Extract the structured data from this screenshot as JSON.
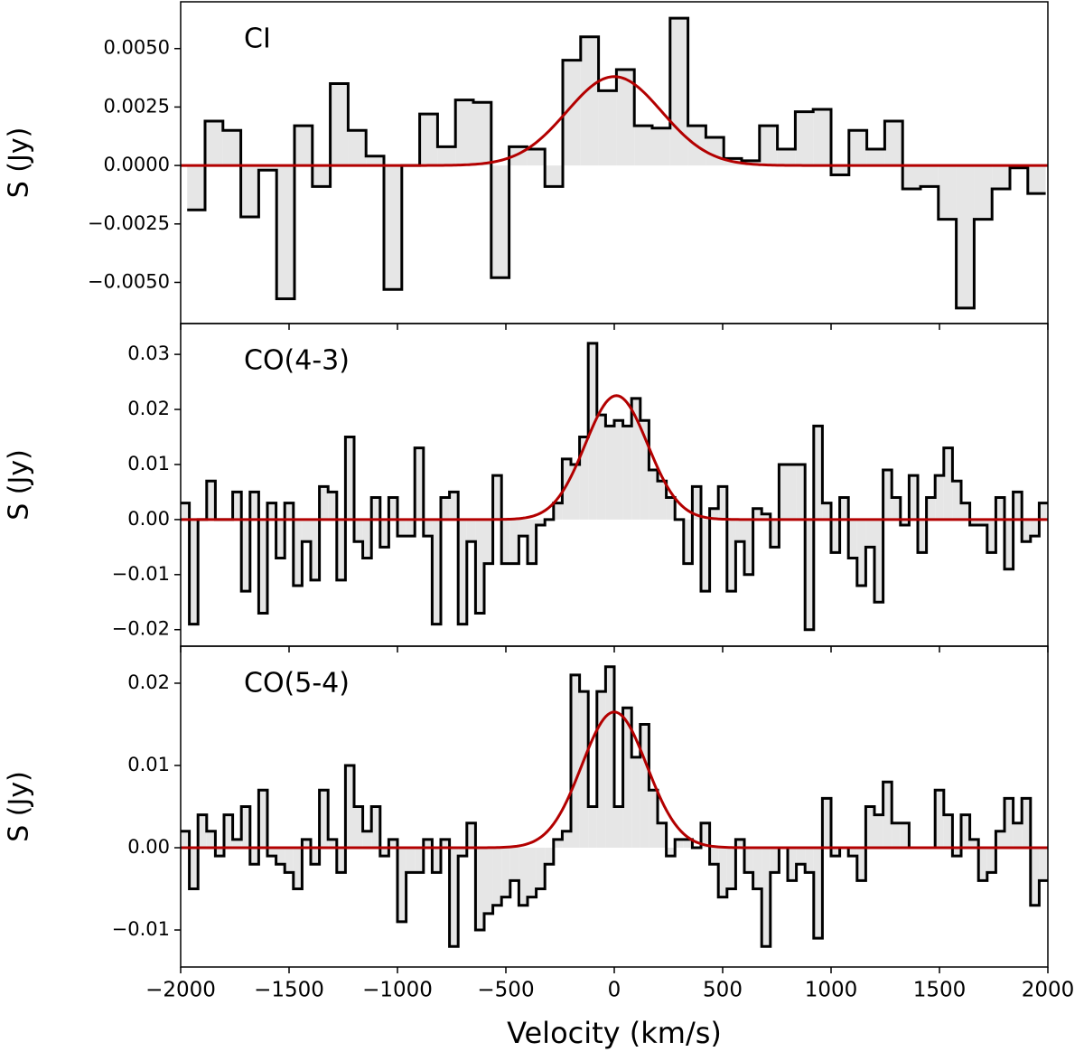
{
  "chart_data": [
    {
      "type": "histogram",
      "title": "CI",
      "ylabel": "S (Jy)",
      "bins": [
        -1970,
        -1887.5,
        -1805,
        -1722.5,
        -1640,
        -1557.5,
        -1475,
        -1392.5,
        -1310,
        -1227.5,
        -1145,
        -1062.5,
        -980,
        -897.5,
        -815,
        -732.5,
        -650,
        -567.5,
        -485,
        -402.5,
        -320,
        -237.5,
        -155,
        -72.5,
        10,
        92.5,
        175,
        257.5,
        340,
        422.5,
        505,
        587.5,
        670,
        752.5,
        835,
        917.5,
        1000,
        1082.5,
        1165,
        1247.5,
        1330,
        1412.5,
        1495,
        1577.5,
        1660,
        1742.5,
        1825,
        1907.5,
        1990
      ],
      "values": [
        -0.0019,
        0.0019,
        0.0015,
        -0.0022,
        -0.0002,
        -0.0057,
        0.0017,
        -0.0009,
        0.0035,
        0.0015,
        0.0004,
        -0.0053,
        0.0,
        0.0022,
        0.0008,
        0.0028,
        0.0027,
        -0.0048,
        0.0008,
        0.0007,
        -0.0009,
        0.0045,
        0.0055,
        0.0032,
        0.0041,
        0.0017,
        0.0016,
        0.0063,
        0.0017,
        0.0012,
        0.0003,
        0.0002,
        0.0017,
        0.0007,
        0.0023,
        0.0024,
        -0.0004,
        0.0015,
        0.0007,
        0.0019,
        -0.001,
        -0.0009,
        -0.0023,
        -0.0061,
        -0.0023,
        -0.001,
        -0.0001,
        -0.0012
      ],
      "fit": {
        "amplitude": 0.0038,
        "center": 0,
        "sigma": 219,
        "color": "#b30000"
      },
      "fill_color": "#e6e6e6",
      "xlim": [
        -2000,
        2000
      ],
      "xticks": [
        -2000,
        -1500,
        -1000,
        -500,
        0,
        500,
        1000,
        1500,
        2000
      ],
      "ylim": [
        -0.00676,
        0.007
      ],
      "yticks": [
        {
          "value": -0.005,
          "label": "−0.0050"
        },
        {
          "value": -0.0025,
          "label": "−0.0025"
        },
        {
          "value": 0,
          "label": "0.0000"
        },
        {
          "value": 0.0025,
          "label": "0.0025"
        },
        {
          "value": 0.005,
          "label": "0.0050"
        }
      ]
    },
    {
      "type": "histogram",
      "title": "CO(4-3)",
      "ylabel": "S (Jy)",
      "bins": [
        -2000,
        -1960,
        -1920,
        -1880,
        -1840,
        -1800,
        -1760,
        -1720,
        -1680,
        -1640,
        -1600,
        -1560,
        -1520,
        -1480,
        -1440,
        -1400,
        -1360,
        -1320,
        -1280,
        -1240,
        -1200,
        -1160,
        -1120,
        -1080,
        -1040,
        -1000,
        -960,
        -920,
        -880,
        -840,
        -800,
        -760,
        -720,
        -680,
        -640,
        -600,
        -560,
        -520,
        -480,
        -440,
        -400,
        -360,
        -320,
        -280,
        -240,
        -200,
        -160,
        -120,
        -80,
        -40,
        0,
        40,
        80,
        120,
        160,
        200,
        240,
        280,
        320,
        360,
        400,
        440,
        480,
        520,
        560,
        600,
        640,
        680,
        720,
        760,
        800,
        840,
        880,
        920,
        960,
        1000,
        1040,
        1080,
        1120,
        1160,
        1200,
        1240,
        1280,
        1320,
        1360,
        1400,
        1440,
        1480,
        1520,
        1560,
        1600,
        1640,
        1680,
        1720,
        1760,
        1800,
        1840,
        1880,
        1920,
        1960,
        2000
      ],
      "values": [
        0.003,
        -0.019,
        0.0,
        0.007,
        0.0,
        0.0,
        0.005,
        -0.013,
        0.005,
        -0.017,
        0.003,
        -0.007,
        0.003,
        -0.012,
        -0.004,
        -0.011,
        0.006,
        0.005,
        -0.011,
        0.015,
        -0.004,
        -0.007,
        0.004,
        -0.005,
        0.004,
        -0.003,
        -0.003,
        0.013,
        -0.003,
        -0.019,
        0.004,
        0.005,
        -0.019,
        -0.004,
        -0.017,
        -0.008,
        0.008,
        -0.008,
        -0.008,
        -0.003,
        -0.008,
        -0.001,
        0.0,
        0.003,
        0.011,
        0.01,
        0.015,
        0.032,
        0.019,
        0.017,
        0.018,
        0.017,
        0.022,
        0.018,
        0.009,
        0.007,
        0.004,
        0.0,
        -0.008,
        0.006,
        -0.013,
        0.002,
        0.006,
        -0.013,
        -0.004,
        -0.01,
        0.002,
        0.001,
        -0.005,
        0.01,
        0.01,
        0.01,
        -0.02,
        0.017,
        0.003,
        -0.006,
        0.004,
        -0.007,
        -0.012,
        -0.005,
        -0.015,
        0.009,
        0.004,
        -0.001,
        0.008,
        -0.006,
        0.004,
        0.008,
        0.013,
        0.007,
        0.003,
        -0.001,
        -0.001,
        -0.006,
        0.004,
        -0.009,
        0.005,
        -0.004,
        -0.003,
        0.003
      ],
      "fit": {
        "amplitude": 0.0225,
        "center": 10,
        "sigma": 144,
        "color": "#b30000"
      },
      "fill_color": "#e6e6e6",
      "xlim": [
        -2000,
        2000
      ],
      "xticks": [
        -2000,
        -1500,
        -1000,
        -500,
        0,
        500,
        1000,
        1500,
        2000
      ],
      "ylim": [
        -0.023,
        0.0356
      ],
      "yticks": [
        {
          "value": -0.02,
          "label": "−0.02"
        },
        {
          "value": -0.01,
          "label": "−0.01"
        },
        {
          "value": 0,
          "label": "0.00"
        },
        {
          "value": 0.01,
          "label": "0.01"
        },
        {
          "value": 0.02,
          "label": "0.02"
        },
        {
          "value": 0.03,
          "label": "0.03"
        }
      ]
    },
    {
      "type": "histogram",
      "title": "CO(5-4)",
      "ylabel": "S (Jy)",
      "xlabel": "Velocity (km/s)",
      "bins": [
        -2000,
        -1960,
        -1920,
        -1880,
        -1840,
        -1800,
        -1760,
        -1720,
        -1680,
        -1640,
        -1600,
        -1560,
        -1520,
        -1480,
        -1440,
        -1400,
        -1360,
        -1320,
        -1280,
        -1240,
        -1200,
        -1160,
        -1120,
        -1080,
        -1040,
        -1000,
        -960,
        -920,
        -880,
        -840,
        -800,
        -760,
        -720,
        -680,
        -640,
        -600,
        -560,
        -520,
        -480,
        -440,
        -400,
        -360,
        -320,
        -280,
        -240,
        -200,
        -160,
        -120,
        -80,
        -40,
        0,
        40,
        80,
        120,
        160,
        200,
        240,
        280,
        320,
        360,
        400,
        440,
        480,
        520,
        560,
        600,
        640,
        680,
        720,
        760,
        800,
        840,
        880,
        920,
        960,
        1000,
        1040,
        1080,
        1120,
        1160,
        1200,
        1240,
        1280,
        1320,
        1360,
        1400,
        1440,
        1480,
        1520,
        1560,
        1600,
        1640,
        1680,
        1720,
        1760,
        1800,
        1840,
        1880,
        1920,
        1960,
        2000
      ],
      "values": [
        0.002,
        -0.005,
        0.004,
        0.002,
        -0.001,
        0.004,
        0.001,
        0.005,
        -0.002,
        0.007,
        -0.001,
        -0.002,
        -0.003,
        -0.005,
        0.001,
        -0.002,
        0.007,
        0.001,
        -0.003,
        0.01,
        0.005,
        0.002,
        0.005,
        -0.001,
        0.001,
        -0.009,
        -0.003,
        -0.003,
        0.001,
        -0.003,
        0.001,
        -0.012,
        -0.001,
        0.003,
        -0.01,
        -0.008,
        -0.007,
        -0.006,
        -0.004,
        -0.007,
        -0.006,
        -0.005,
        -0.002,
        0.001,
        0.002,
        0.021,
        0.019,
        0.005,
        0.019,
        0.022,
        0.005,
        0.017,
        0.011,
        0.015,
        0.007,
        0.003,
        -0.001,
        0.001,
        0.001,
        0.0,
        0.003,
        -0.002,
        -0.006,
        -0.005,
        0.001,
        -0.003,
        -0.005,
        -0.012,
        -0.003,
        0.0,
        -0.004,
        -0.002,
        -0.003,
        -0.011,
        0.006,
        -0.001,
        0.0,
        -0.001,
        -0.004,
        0.005,
        0.004,
        0.008,
        0.003,
        0.003,
        0.0,
        0.0,
        0.0,
        0.007,
        0.004,
        -0.001,
        0.004,
        0.001,
        -0.004,
        -0.003,
        0.002,
        0.006,
        0.003,
        0.006,
        -0.007,
        -0.004
      ],
      "fit": {
        "amplitude": 0.0165,
        "center": 0,
        "sigma": 150,
        "color": "#b30000"
      },
      "fill_color": "#e6e6e6",
      "xlim": [
        -2000,
        2000
      ],
      "xticks": [
        {
          "value": -2000,
          "label": "−2000"
        },
        {
          "value": -1500,
          "label": "−1500"
        },
        {
          "value": -1000,
          "label": "−1000"
        },
        {
          "value": -500,
          "label": "−500"
        },
        0,
        500,
        1000,
        1500,
        2000
      ],
      "ylim": [
        -0.0145,
        0.0245
      ],
      "yticks": [
        {
          "value": -0.01,
          "label": "−0.01"
        },
        {
          "value": 0,
          "label": "0.00"
        },
        {
          "value": 0.01,
          "label": "0.01"
        },
        {
          "value": 0.02,
          "label": "0.02"
        }
      ]
    }
  ]
}
